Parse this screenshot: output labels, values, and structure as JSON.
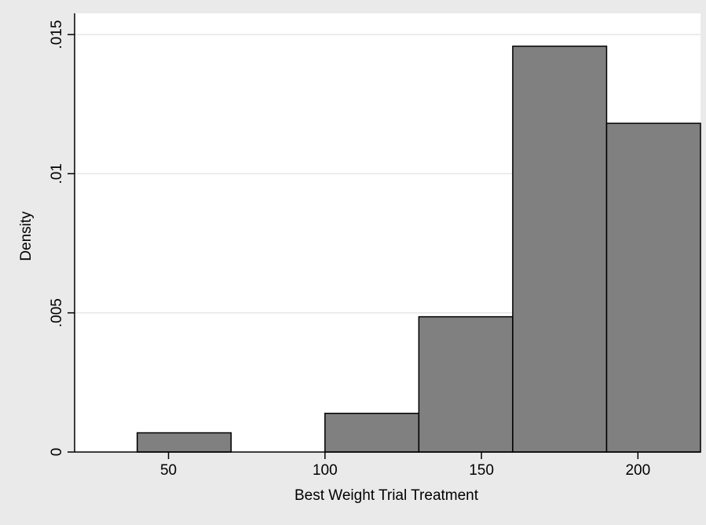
{
  "chart_data": {
    "type": "bar",
    "subtype": "histogram",
    "title": "",
    "xlabel": "Best Weight Trial Treatment",
    "ylabel": "Density",
    "xlim": [
      20,
      220
    ],
    "ylim": [
      0,
      0.015
    ],
    "x_ticks": [
      {
        "value": 50,
        "label": "50"
      },
      {
        "value": 100,
        "label": "100"
      },
      {
        "value": 150,
        "label": "150"
      },
      {
        "value": 200,
        "label": "200"
      }
    ],
    "y_ticks": [
      {
        "value": 0,
        "label": "0"
      },
      {
        "value": 0.005,
        "label": ".005"
      },
      {
        "value": 0.01,
        "label": ".01"
      },
      {
        "value": 0.015,
        "label": ".015"
      }
    ],
    "bins": [
      {
        "start": 40,
        "end": 70,
        "density": 0.00069
      },
      {
        "start": 70,
        "end": 100,
        "density": 0
      },
      {
        "start": 100,
        "end": 130,
        "density": 0.00139
      },
      {
        "start": 130,
        "end": 160,
        "density": 0.00486
      },
      {
        "start": 160,
        "end": 190,
        "density": 0.01458
      },
      {
        "start": 190,
        "end": 220,
        "density": 0.01181
      }
    ],
    "grid": true,
    "legend": "none",
    "colors": {
      "background": "#eaeaea",
      "plot_background": "#ffffff",
      "bar_fill": "#808080",
      "bar_stroke": "#000000",
      "grid": "#e6e6e6",
      "axis": "#000000"
    }
  }
}
